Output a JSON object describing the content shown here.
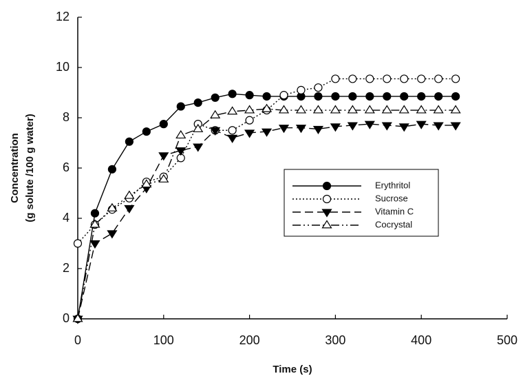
{
  "chart_data": {
    "type": "line",
    "xlabel": "Time (s)",
    "ylabel": [
      "Concentration",
      "(g solute /100 g water)"
    ],
    "x": [
      0,
      20,
      40,
      60,
      80,
      100,
      120,
      140,
      160,
      180,
      200,
      220,
      240,
      260,
      280,
      300,
      320,
      340,
      360,
      380,
      400,
      420,
      440
    ],
    "series": [
      {
        "name": "Erythritol",
        "color": "#000000",
        "marker": "circle-filled",
        "line_style": "solid",
        "values": [
          0,
          4.2,
          5.95,
          7.05,
          7.45,
          7.75,
          8.45,
          8.6,
          8.8,
          8.95,
          8.9,
          8.85,
          8.85,
          8.85,
          8.85,
          8.85,
          8.85,
          8.85,
          8.85,
          8.85,
          8.85,
          8.85,
          8.85
        ]
      },
      {
        "name": "Sucrose",
        "color": "#000000",
        "marker": "circle-open",
        "line_style": "dotted",
        "values": [
          3.0,
          3.75,
          4.35,
          4.8,
          5.45,
          5.65,
          6.4,
          7.75,
          7.5,
          7.5,
          7.9,
          8.3,
          8.9,
          9.1,
          9.2,
          9.55,
          9.55,
          9.55,
          9.55,
          9.55,
          9.55,
          9.55,
          9.55
        ]
      },
      {
        "name": "Vitamin C",
        "color": "#000000",
        "marker": "triangle-down-filled",
        "line_style": "dashed",
        "values": [
          0,
          3.0,
          3.4,
          4.4,
          5.2,
          6.5,
          6.7,
          6.85,
          7.5,
          7.2,
          7.4,
          7.45,
          7.6,
          7.6,
          7.55,
          7.65,
          7.7,
          7.75,
          7.7,
          7.65,
          7.75,
          7.7,
          7.7
        ]
      },
      {
        "name": "Cocrystal",
        "color": "#000000",
        "marker": "triangle-up-open",
        "line_style": "dash-dot-dot",
        "values": [
          0,
          3.75,
          4.4,
          4.9,
          5.35,
          5.55,
          7.3,
          7.55,
          8.1,
          8.25,
          8.3,
          8.35,
          8.3,
          8.3,
          8.3,
          8.3,
          8.3,
          8.3,
          8.3,
          8.3,
          8.3,
          8.3,
          8.3
        ]
      }
    ],
    "xlim": [
      0,
      500
    ],
    "xticks": [
      0,
      100,
      200,
      300,
      400,
      500
    ],
    "ylim": [
      0,
      12
    ],
    "yticks": [
      0,
      2,
      4,
      6,
      8,
      10,
      12
    ],
    "legend": "right",
    "grid": false
  }
}
